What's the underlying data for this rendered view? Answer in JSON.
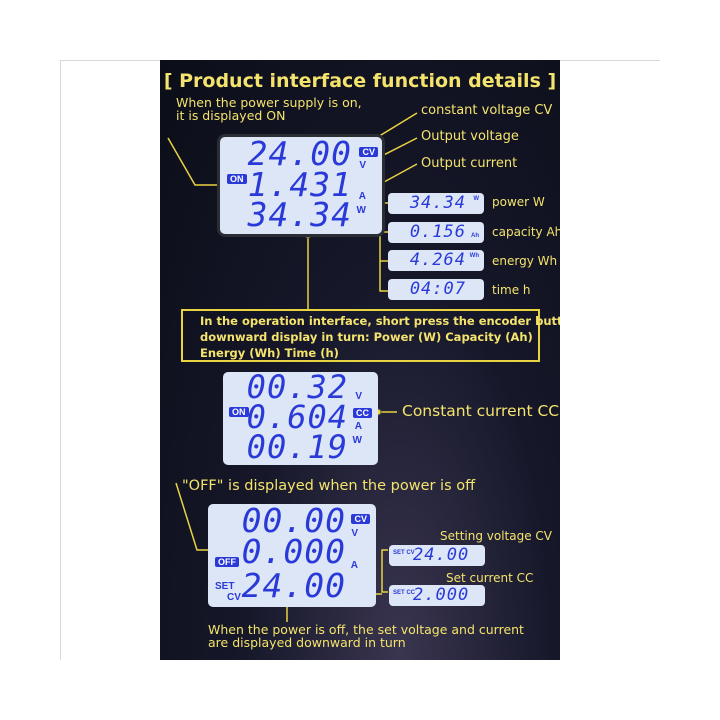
{
  "title": "[ Product interface function details ]",
  "top_note": [
    "When the power supply is on,",
    "it is displayed ON"
  ],
  "labels": {
    "cv": "constant voltage CV",
    "ov": "Output voltage",
    "oc": "Output current"
  },
  "lcd1": {
    "badge": "ON",
    "volts": "24.00",
    "amps": "1.431",
    "watts": "34.34",
    "mode": "CV",
    "u_v": "V",
    "u_a": "A",
    "u_w": "W"
  },
  "minis": [
    {
      "value": "34.34",
      "unit": "W",
      "label": "power  W"
    },
    {
      "value": "0.156",
      "unit": "Ah",
      "label": "capacity  Ah"
    },
    {
      "value": "4.264",
      "unit": "Wh",
      "label": "energy  Wh"
    },
    {
      "value": "04:07",
      "unit": "",
      "label": "time   h"
    }
  ],
  "box_text": [
    "In the operation interface, short press the encoder button and",
    "downward display in turn:   Power (W)   Capacity (Ah)",
    "Energy (Wh) Time (h)"
  ],
  "lcd2": {
    "badge": "ON",
    "volts": "00.32",
    "amps": "0.604",
    "watts": "00.19",
    "mode": "CC",
    "u_v": "V",
    "u_a": "A",
    "u_w": "W",
    "label": "Constant current CC"
  },
  "off_note": "\"OFF\" is displayed when the power is off",
  "lcd3": {
    "badge": "OFF",
    "volts": "00.00",
    "amps": "0.000",
    "set": "24.00",
    "mode": "CV",
    "u_v": "V",
    "u_a": "A",
    "set_label": "SET",
    "set_mode": "CV"
  },
  "set_minis": [
    {
      "tag": "SET CV",
      "value": "24.00",
      "label": "Setting voltage CV"
    },
    {
      "tag": "SET CC",
      "value": "2.000",
      "label": "Set current CC"
    }
  ],
  "bottom_note": [
    "When the power is off, the set voltage and current",
    "are displayed downward in turn"
  ],
  "colors": {
    "annotation": "#f4e36c",
    "lcd_digits": "#2a3ad8",
    "lcd_bg": "#dde6f7"
  }
}
